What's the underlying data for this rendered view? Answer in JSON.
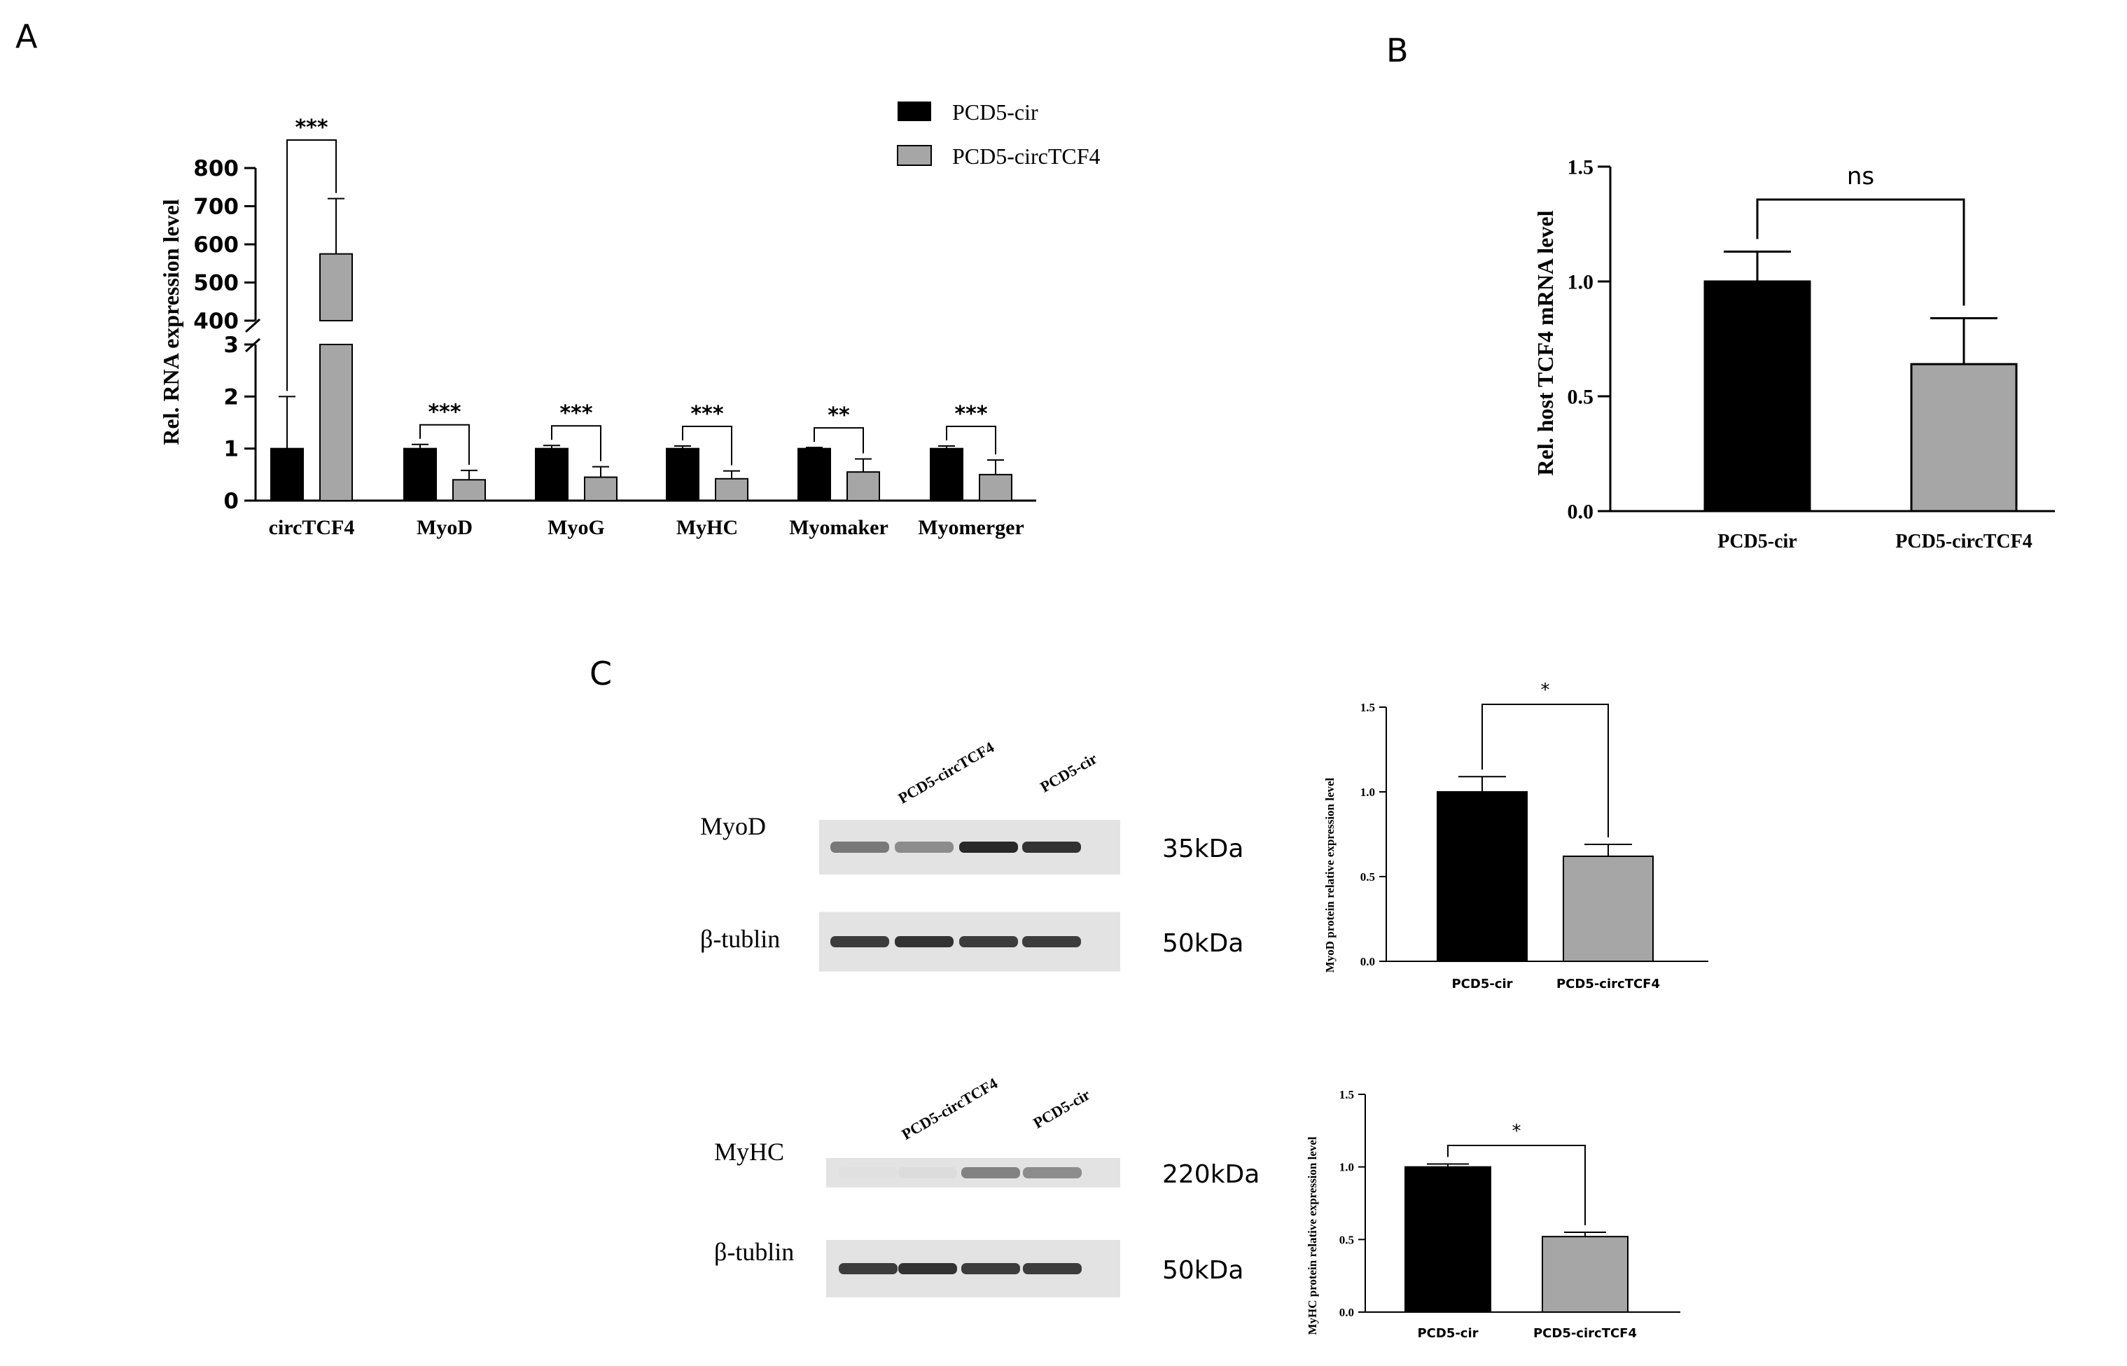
{
  "panels": {
    "A": "A",
    "B": "B",
    "C": "C"
  },
  "colors": {
    "black_bar": "#000000",
    "grey_bar": "#a6a6a6",
    "axis": "#000000"
  },
  "western_blots": [
    {
      "lane_labels": [
        "PCD5-circTCF4",
        "PCD5-cir"
      ],
      "rows": [
        {
          "protein": "MyoD",
          "size": "35kDa",
          "band_intensity": [
            0.55,
            0.45,
            0.95,
            0.9
          ]
        },
        {
          "protein": "β-tublin",
          "size": "50kDa",
          "band_intensity": [
            0.85,
            0.9,
            0.85,
            0.85
          ]
        }
      ]
    },
    {
      "lane_labels": [
        "PCD5-circTCF4",
        "PCD5-cir"
      ],
      "rows": [
        {
          "protein": "MyHC",
          "size": "220kDa",
          "band_intensity": [
            0.03,
            0.05,
            0.5,
            0.45
          ]
        },
        {
          "protein": "β-tublin",
          "size": "50kDa",
          "band_intensity": [
            0.85,
            0.9,
            0.85,
            0.85
          ]
        }
      ]
    }
  ],
  "chart_data": [
    {
      "panel": "A",
      "type": "bar",
      "broken_axis": true,
      "ylabel": "Rel. RNA expression level",
      "lower_ylim": [
        0,
        3
      ],
      "lower_yticks": [
        "0",
        "1",
        "2",
        "3"
      ],
      "upper_ylim": [
        400,
        800
      ],
      "upper_yticks": [
        "400",
        "500",
        "600",
        "700",
        "800"
      ],
      "categories": [
        "circTCF4",
        "MyoD",
        "MyoG",
        "MyHC",
        "Myomaker",
        "Myomerger"
      ],
      "series": [
        {
          "name": "PCD5-cir",
          "color": "#000000",
          "values": [
            1.0,
            1.0,
            1.0,
            1.0,
            1.0,
            1.0
          ],
          "errors": [
            1.0,
            0.08,
            0.06,
            0.05,
            0.02,
            0.05
          ]
        },
        {
          "name": "PCD5-circTCF4",
          "color": "#a6a6a6",
          "values": [
            575,
            0.4,
            0.45,
            0.42,
            0.55,
            0.5
          ],
          "errors": [
            145,
            0.18,
            0.2,
            0.15,
            0.25,
            0.28
          ]
        }
      ],
      "significance": [
        "***",
        "***",
        "***",
        "***",
        "**",
        "***"
      ],
      "legend": "top-right"
    },
    {
      "panel": "B",
      "type": "bar",
      "ylabel": "Rel. host TCF4 mRNA level",
      "ylim": [
        0,
        1.5
      ],
      "yticks": [
        "0.0",
        "0.5",
        "1.0",
        "1.5"
      ],
      "categories": [
        "PCD5-cir",
        "PCD5-circTCF4"
      ],
      "values": [
        1.0,
        0.64
      ],
      "errors": [
        0.13,
        0.2
      ],
      "colors": [
        "#000000",
        "#a6a6a6"
      ],
      "significance": "ns"
    },
    {
      "panel": "C-MyoD",
      "type": "bar",
      "ylabel": "MyoD protein relative expression level",
      "ylim": [
        0,
        1.5
      ],
      "yticks": [
        "0.0",
        "0.5",
        "1.0",
        "1.5"
      ],
      "categories": [
        "PCD5-cir",
        "PCD5-circTCF4"
      ],
      "values": [
        1.0,
        0.62
      ],
      "errors": [
        0.09,
        0.07
      ],
      "colors": [
        "#000000",
        "#a6a6a6"
      ],
      "significance": "*"
    },
    {
      "panel": "C-MyHC",
      "type": "bar",
      "ylabel": "MyHC protein relative expression level",
      "ylim": [
        0,
        1.5
      ],
      "yticks": [
        "0.0",
        "0.5",
        "1.0",
        "1.5"
      ],
      "categories": [
        "PCD5-cir",
        "PCD5-circTCF4"
      ],
      "values": [
        1.0,
        0.52
      ],
      "errors": [
        0.02,
        0.03
      ],
      "colors": [
        "#000000",
        "#a6a6a6"
      ],
      "significance": "*"
    }
  ]
}
